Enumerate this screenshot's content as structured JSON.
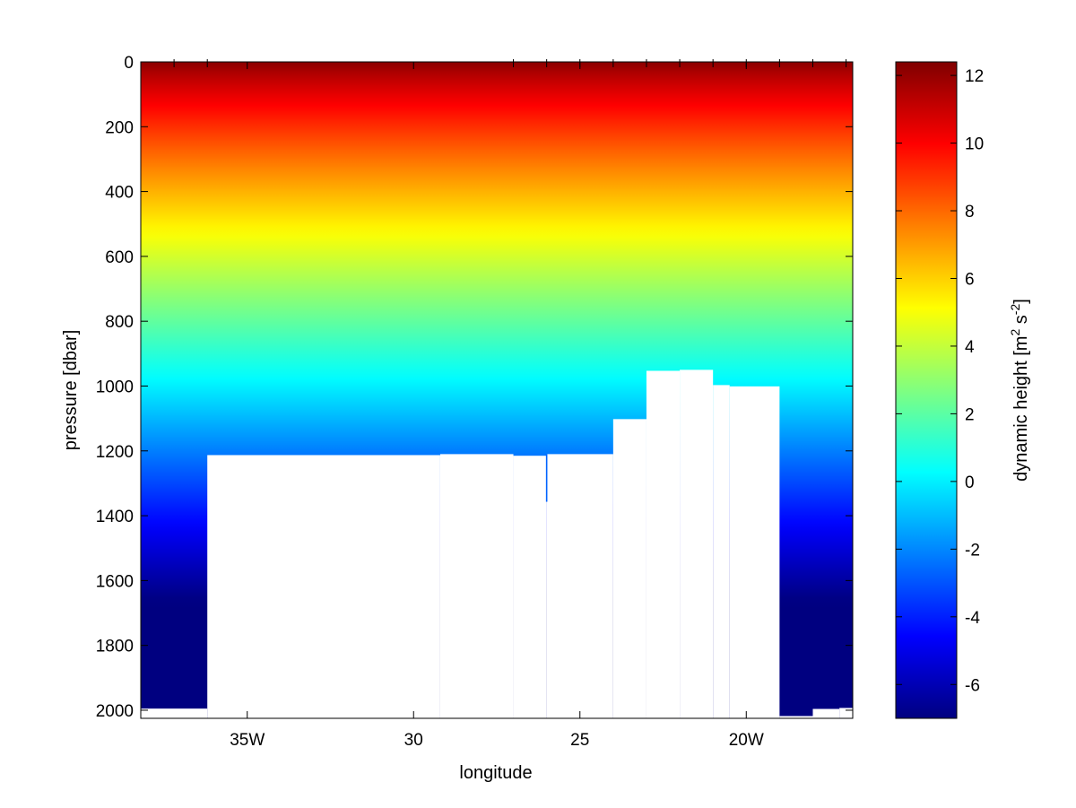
{
  "chart_data": {
    "type": "heatmap",
    "title": "",
    "xlabel": "longitude",
    "ylabel": "pressure [dbar]",
    "colorbar_label": "dynamic height [m^2 s^-2]",
    "colorbar_label_parts": {
      "base": "dynamic height [m",
      "exp1": "2",
      "mid": " s",
      "exp2": "-2",
      "end": "]"
    },
    "xlim": [
      -38.2,
      -16.8
    ],
    "ylim": [
      2025,
      0
    ],
    "clim": [
      -7,
      12.4
    ],
    "colormap": "jet",
    "x_ticks": [
      {
        "value": -35,
        "label": "35W"
      },
      {
        "value": -30,
        "label": "30"
      },
      {
        "value": -25,
        "label": "25"
      },
      {
        "value": -20,
        "label": "20W"
      }
    ],
    "y_ticks": [
      {
        "value": 0,
        "label": "0"
      },
      {
        "value": 200,
        "label": "200"
      },
      {
        "value": 400,
        "label": "400"
      },
      {
        "value": 600,
        "label": "600"
      },
      {
        "value": 800,
        "label": "800"
      },
      {
        "value": 1000,
        "label": "1000"
      },
      {
        "value": 1200,
        "label": "1200"
      },
      {
        "value": 1400,
        "label": "1400"
      },
      {
        "value": 1600,
        "label": "1600"
      },
      {
        "value": 1800,
        "label": "1800"
      },
      {
        "value": 2000,
        "label": "2000"
      }
    ],
    "colorbar_ticks": [
      {
        "value": 12,
        "label": "12"
      },
      {
        "value": 10,
        "label": "10"
      },
      {
        "value": 8,
        "label": "8"
      },
      {
        "value": 6,
        "label": "6"
      },
      {
        "value": 4,
        "label": "4"
      },
      {
        "value": 2,
        "label": "2"
      },
      {
        "value": 0,
        "label": "0"
      },
      {
        "value": -2,
        "label": "-2"
      },
      {
        "value": -4,
        "label": "-4"
      },
      {
        "value": -6,
        "label": "-6"
      }
    ],
    "station_longitudes": [
      -37.2,
      -36.2,
      -27.0,
      -26.0,
      -25.0,
      -24.0,
      -23.0,
      -22.0,
      -21.0,
      -20.0,
      -19.0,
      -18.0,
      -17.0
    ],
    "bottom_profile": [
      {
        "x_start": -38.2,
        "x_end": -36.2,
        "depth": 1995
      },
      {
        "x_start": -36.2,
        "x_end": -29.2,
        "depth": 1213
      },
      {
        "x_start": -29.2,
        "x_end": -27.0,
        "depth": 1210
      },
      {
        "x_start": -27.0,
        "x_end": -26.0,
        "depth": 1215
      },
      {
        "x_start": -26.0,
        "x_end": -24.0,
        "depth": 1210
      },
      {
        "x_start": -24.0,
        "x_end": -23.0,
        "depth": 1102
      },
      {
        "x_start": -23.0,
        "x_end": -22.0,
        "depth": 953
      },
      {
        "x_start": -22.0,
        "x_end": -21.0,
        "depth": 950
      },
      {
        "x_start": -21.0,
        "x_end": -20.5,
        "depth": 997
      },
      {
        "x_start": -20.5,
        "x_end": -19.0,
        "depth": 1001
      },
      {
        "x_start": -19.0,
        "x_end": -18.0,
        "depth": 2018
      },
      {
        "x_start": -18.0,
        "x_end": -17.2,
        "depth": 1996
      },
      {
        "x_start": -17.2,
        "x_end": -16.8,
        "depth": 1993
      }
    ],
    "narrow_cast": {
      "x": -26.0,
      "depth": 1357
    },
    "value_model": "dynamic height decreasing with pressure; about 12 at surface, about 0 near 1000 dbar, about -7 near 2000 dbar"
  }
}
